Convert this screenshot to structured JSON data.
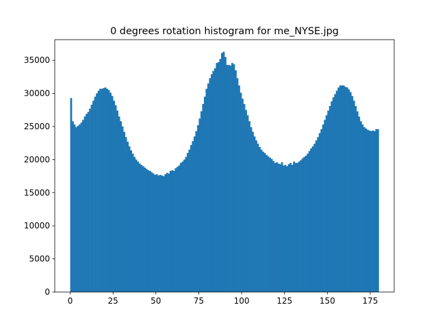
{
  "chart_data": {
    "type": "histogram",
    "title": "0 degrees rotation histogram for me_NYSE.jpg",
    "color": "#1f77b4",
    "bins": [
      0,
      1,
      2,
      3,
      4,
      5,
      6,
      7,
      8,
      9,
      10,
      11,
      12,
      13,
      14,
      15,
      16,
      17,
      18,
      19,
      20,
      21,
      22,
      23,
      24,
      25,
      26,
      27,
      28,
      29,
      30,
      31,
      32,
      33,
      34,
      35,
      36,
      37,
      38,
      39,
      40,
      41,
      42,
      43,
      44,
      45,
      46,
      47,
      48,
      49,
      50,
      51,
      52,
      53,
      54,
      55,
      56,
      57,
      58,
      59,
      60,
      61,
      62,
      63,
      64,
      65,
      66,
      67,
      68,
      69,
      70,
      71,
      72,
      73,
      74,
      75,
      76,
      77,
      78,
      79,
      80,
      81,
      82,
      83,
      84,
      85,
      86,
      87,
      88,
      89,
      90,
      91,
      92,
      93,
      94,
      95,
      96,
      97,
      98,
      99,
      100,
      101,
      102,
      103,
      104,
      105,
      106,
      107,
      108,
      109,
      110,
      111,
      112,
      113,
      114,
      115,
      116,
      117,
      118,
      119,
      120,
      121,
      122,
      123,
      124,
      125,
      126,
      127,
      128,
      129,
      130,
      131,
      132,
      133,
      134,
      135,
      136,
      137,
      138,
      139,
      140,
      141,
      142,
      143,
      144,
      145,
      146,
      147,
      148,
      149,
      150,
      151,
      152,
      153,
      154,
      155,
      156,
      157,
      158,
      159,
      160,
      161,
      162,
      163,
      164,
      165,
      166,
      167,
      168,
      169,
      170,
      171,
      172,
      173,
      174,
      175,
      176,
      177,
      178,
      179,
      180
    ],
    "values": [
      29300,
      25800,
      25300,
      24900,
      25100,
      25300,
      25600,
      26000,
      26500,
      26900,
      27200,
      27700,
      28300,
      28900,
      29500,
      30000,
      30400,
      30700,
      30700,
      30800,
      30900,
      30700,
      30500,
      30100,
      29600,
      28900,
      28200,
      27400,
      26500,
      25800,
      25000,
      24200,
      23400,
      22700,
      22000,
      21400,
      20900,
      20400,
      20000,
      19700,
      19400,
      19200,
      19000,
      18800,
      18600,
      18400,
      18300,
      18100,
      17900,
      17700,
      17800,
      17600,
      17700,
      17600,
      17500,
      17800,
      18000,
      17900,
      18300,
      18400,
      18300,
      18700,
      18900,
      19100,
      19500,
      19700,
      20000,
      20400,
      21000,
      21500,
      22200,
      22800,
      23500,
      24300,
      25200,
      26200,
      27300,
      28400,
      29500,
      30700,
      31500,
      32300,
      32900,
      33400,
      33800,
      34600,
      34700,
      35200,
      36100,
      36300,
      35500,
      34300,
      34300,
      34200,
      34600,
      34400,
      33500,
      32300,
      31200,
      30100,
      29200,
      28400,
      27500,
      26700,
      25800,
      24900,
      24200,
      23500,
      22900,
      22400,
      21900,
      21500,
      21200,
      21000,
      20700,
      20500,
      20300,
      20100,
      19800,
      19500,
      19600,
      19400,
      19300,
      19600,
      19100,
      19200,
      19000,
      19300,
      19500,
      19200,
      19700,
      19500,
      19500,
      19700,
      19900,
      20200,
      20400,
      20600,
      20900,
      21300,
      21700,
      22000,
      22400,
      22900,
      23400,
      24000,
      24600,
      25300,
      26000,
      26700,
      27400,
      28100,
      28800,
      29400,
      29900,
      30400,
      30900,
      31200,
      31200,
      31200,
      31000,
      30900,
      30600,
      30200,
      29600,
      28900,
      28100,
      27300,
      26500,
      25800,
      25300,
      24900,
      24700,
      24500,
      24400,
      24300,
      24400,
      24300,
      24600,
      24600
    ],
    "xlim": [
      -9,
      189
    ],
    "xticks": [
      0,
      25,
      50,
      75,
      100,
      125,
      150,
      175
    ],
    "ylim": [
      0,
      38115
    ],
    "yticks": [
      0,
      5000,
      10000,
      15000,
      20000,
      25000,
      30000,
      35000
    ]
  }
}
